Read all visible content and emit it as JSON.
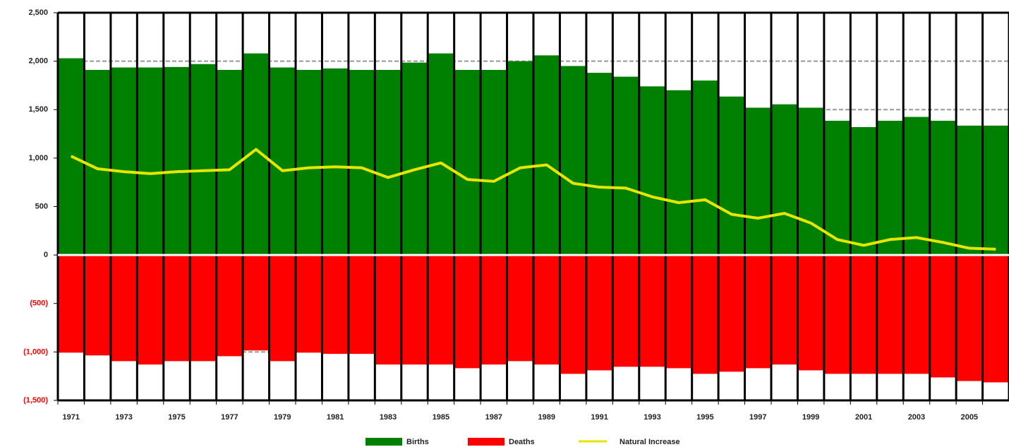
{
  "chart_data": {
    "type": "bar",
    "categories": [
      "1971",
      null,
      "1973",
      null,
      "1975",
      null,
      "1977",
      null,
      "1979",
      null,
      "1981",
      null,
      "1983",
      null,
      "1985",
      null,
      "1987",
      null,
      "1989",
      null,
      "1991",
      null,
      "1993",
      null,
      "1995",
      null,
      "1997",
      null,
      "1999",
      null,
      "2001",
      null,
      "2003",
      null,
      "2005",
      null
    ],
    "series": [
      {
        "name": "Births",
        "type": "bar",
        "color": "#008000",
        "values": [
          2030,
          1910,
          1935,
          1935,
          1940,
          1970,
          1910,
          2080,
          1935,
          1910,
          1925,
          1910,
          1910,
          1985,
          2080,
          1910,
          1910,
          2000,
          2060,
          1950,
          1880,
          1840,
          1740,
          1700,
          1800,
          1635,
          1520,
          1555,
          1520,
          1385,
          1320,
          1385,
          1425,
          1385,
          1335,
          1335
        ]
      },
      {
        "name": "Deaths",
        "type": "bar",
        "color": "#ff0000",
        "values": [
          -1007,
          -1036,
          -1095,
          -1130,
          -1095,
          -1095,
          -1044,
          -985,
          -1095,
          -1007,
          -1020,
          -1020,
          -1130,
          -1130,
          -1130,
          -1168,
          -1130,
          -1095,
          -1130,
          -1226,
          -1190,
          -1153,
          -1153,
          -1168,
          -1226,
          -1204,
          -1168,
          -1130,
          -1190,
          -1226,
          -1226,
          -1226,
          -1226,
          -1263,
          -1300,
          -1314
        ]
      },
      {
        "name": "Natural Increase",
        "type": "line",
        "color": "#e6e600",
        "values": [
          1020,
          890,
          860,
          840,
          860,
          870,
          880,
          1090,
          870,
          900,
          910,
          900,
          800,
          880,
          950,
          780,
          760,
          900,
          930,
          740,
          700,
          690,
          600,
          540,
          570,
          420,
          380,
          430,
          330,
          160,
          100,
          160,
          180,
          130,
          70,
          60
        ]
      }
    ],
    "ylim": [
      -1500,
      2500
    ],
    "yticks": [
      {
        "value": 2500,
        "label": "2,500"
      },
      {
        "value": 2000,
        "label": "2,000"
      },
      {
        "value": 1500,
        "label": "1,500"
      },
      {
        "value": 1000,
        "label": "1,000"
      },
      500,
      0,
      {
        "value": -500,
        "label": "(500)"
      },
      {
        "value": -1000,
        "label": "(1,000)"
      },
      {
        "value": -1500,
        "label": "(1,500)"
      }
    ],
    "grid": true,
    "legend": "bottom"
  }
}
